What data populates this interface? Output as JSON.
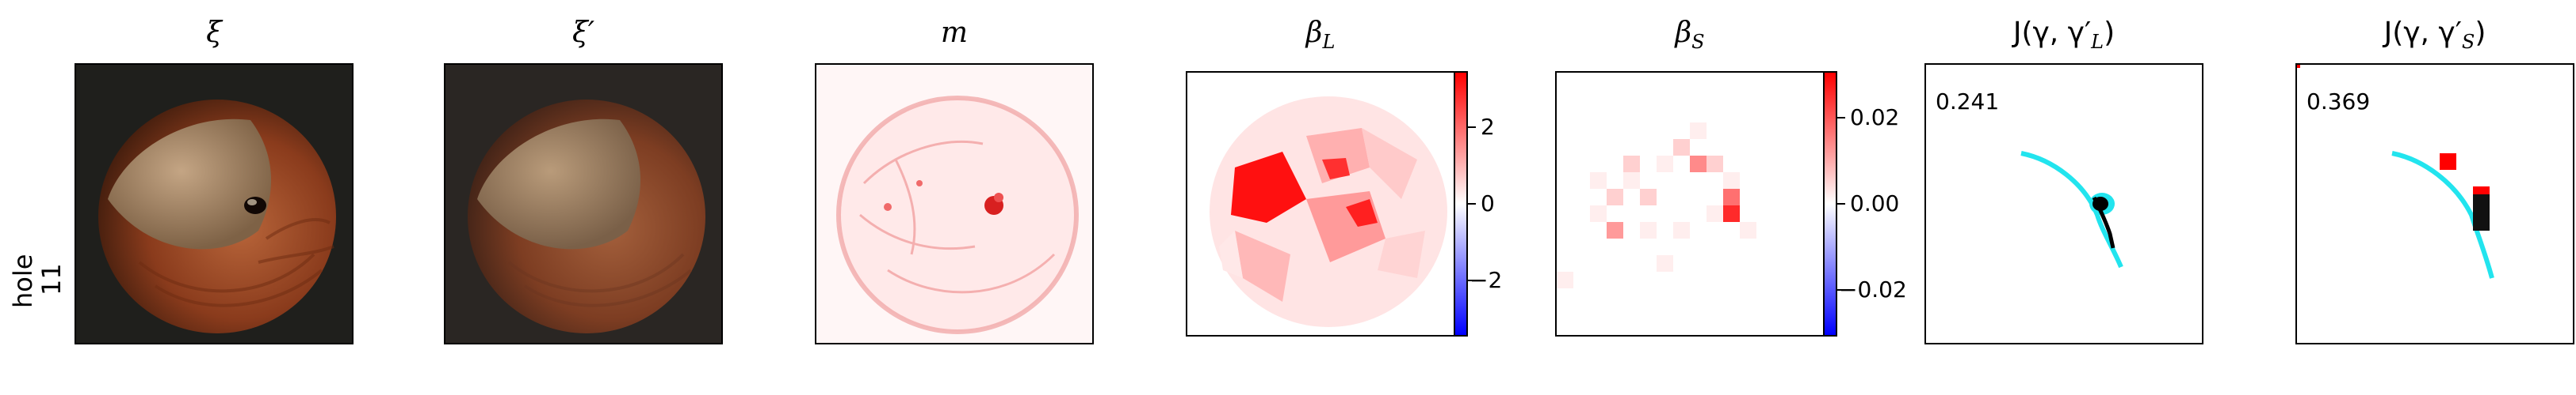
{
  "row_label": {
    "line1": "hole",
    "line2": "11"
  },
  "panels": [
    {
      "title": "ξ"
    },
    {
      "title": "ξ′"
    },
    {
      "title": "m"
    },
    {
      "title": "β",
      "sub": "L"
    },
    {
      "title": "β",
      "sub": "S"
    },
    {
      "title": "J(γ, γ′",
      "sub": "L",
      "tail": ")"
    },
    {
      "title": "J(γ, γ′",
      "sub": "S",
      "tail": ")"
    }
  ],
  "colorbar_L": {
    "ticks": [
      "2",
      "0",
      "−2"
    ]
  },
  "colorbar_S": {
    "ticks": [
      "0.02",
      "0.00",
      "−0.02"
    ]
  },
  "scores": {
    "L": "0.241",
    "S": "0.369"
  },
  "colors": {
    "nut_dark": "#3a1a0c",
    "nut_mid": "#8a3b1c",
    "nut_light": "#b8653a",
    "cap": "#a88a6a",
    "background": "#1f1f1c",
    "heat_red": "#ff0000",
    "jaccard_cyan": "#22e4ee"
  }
}
